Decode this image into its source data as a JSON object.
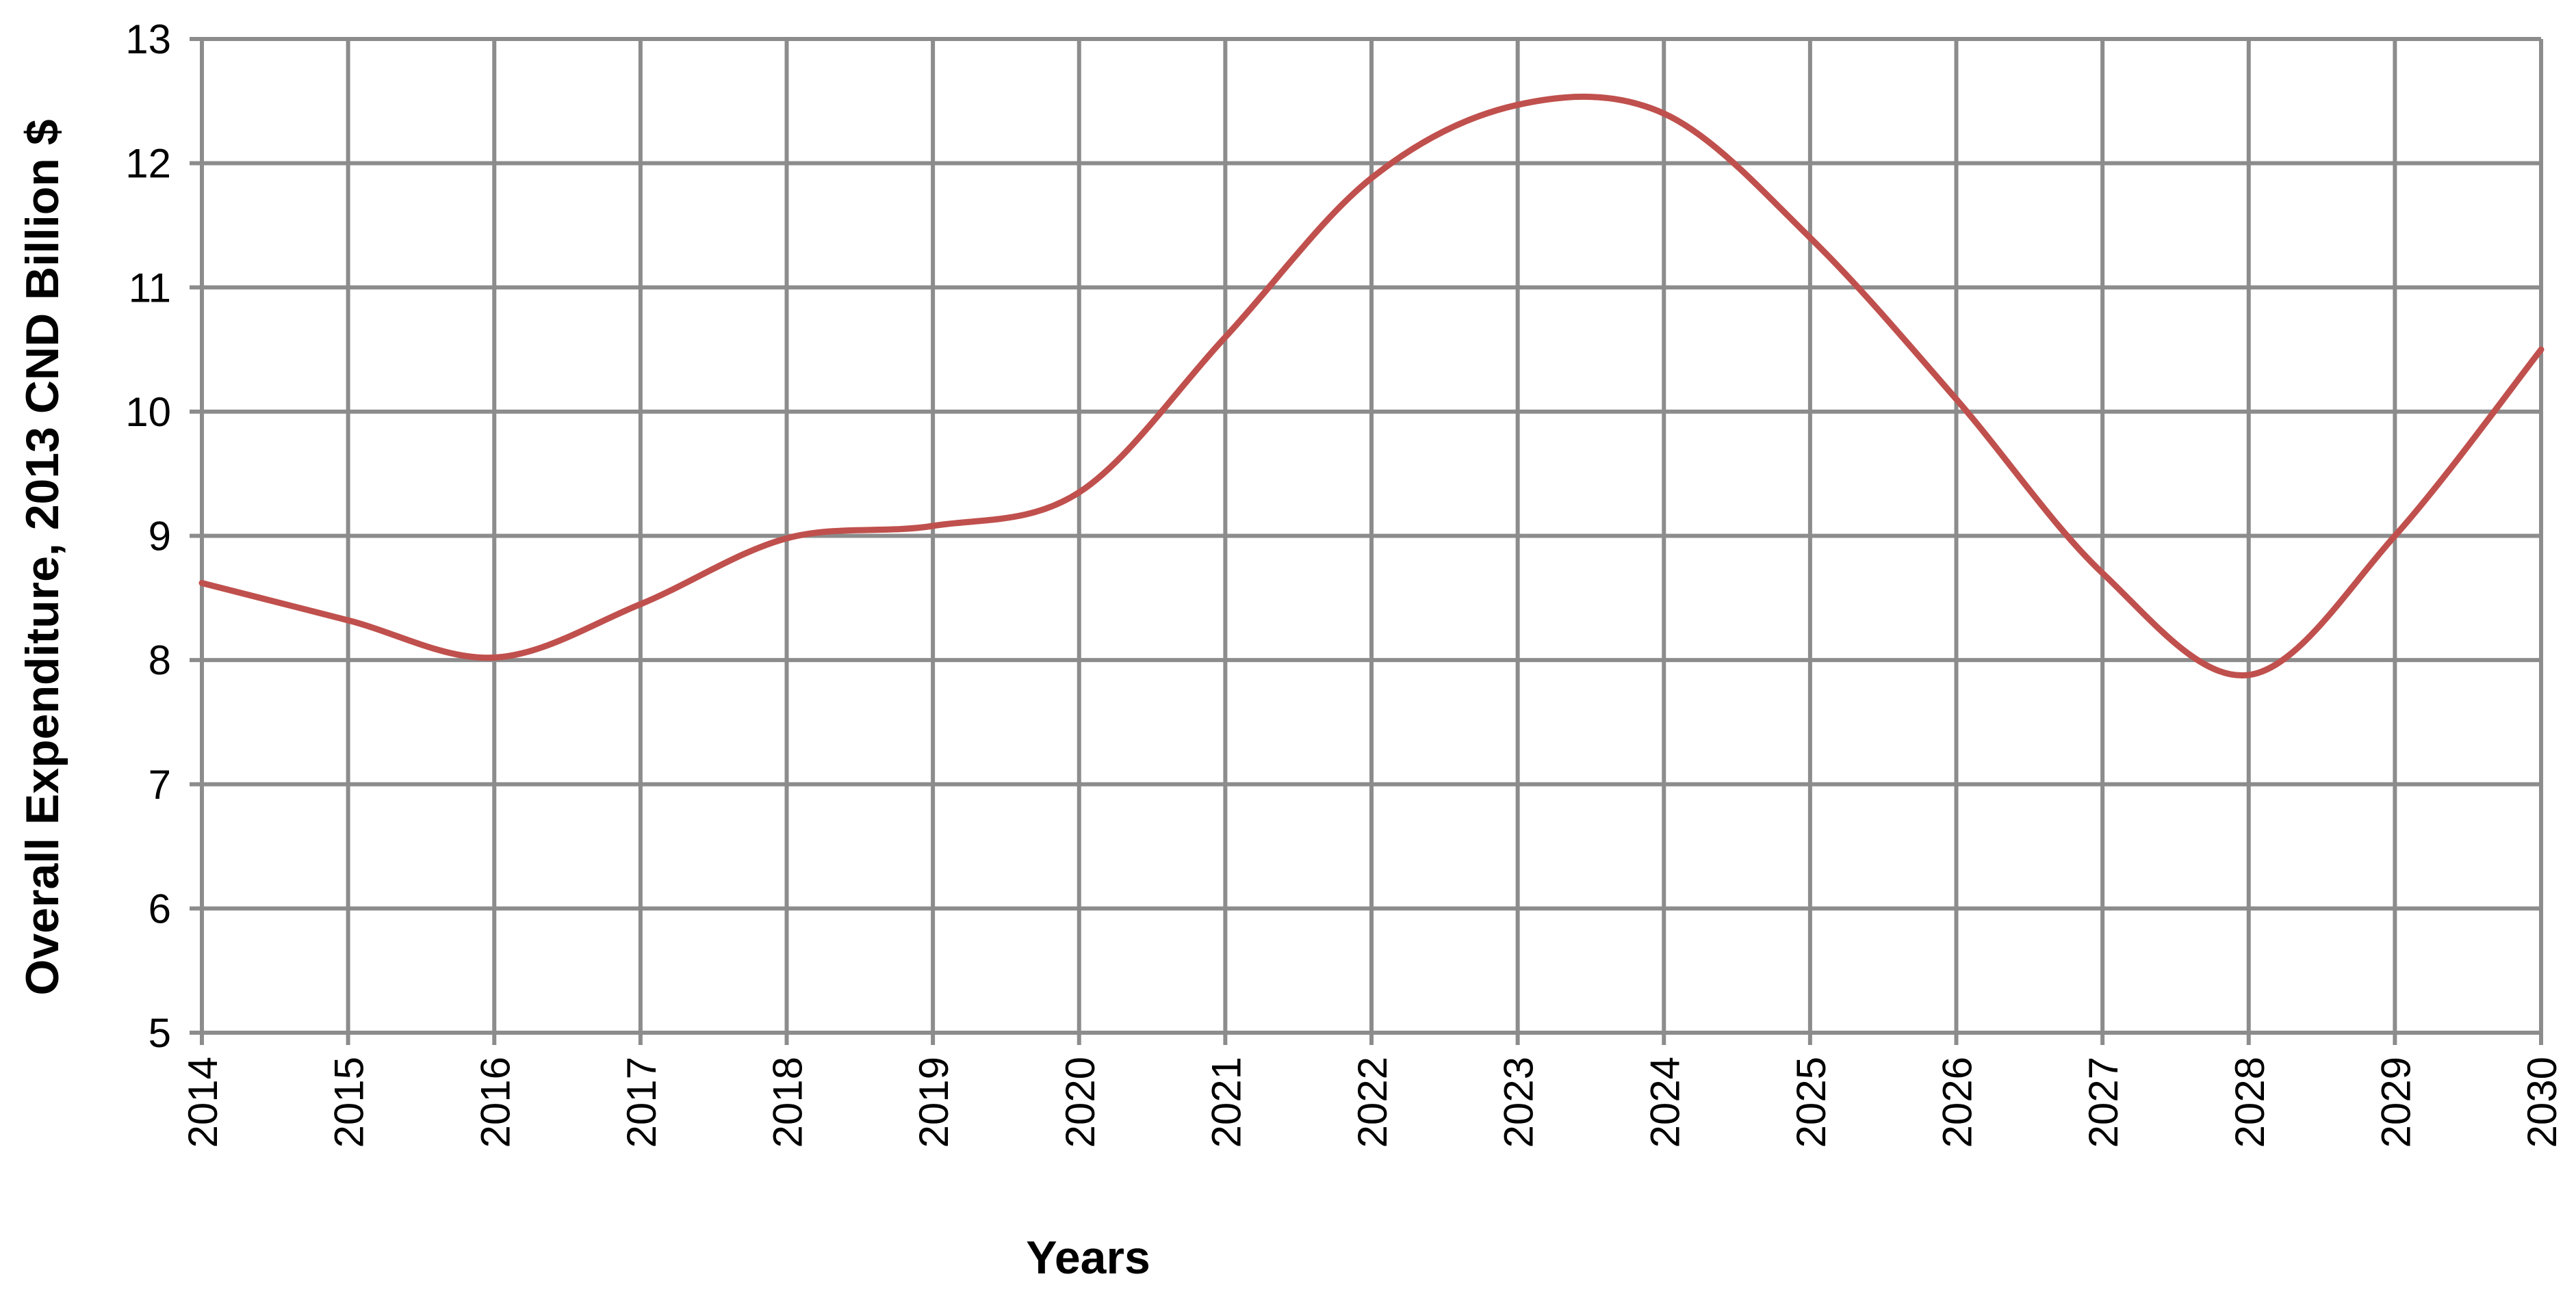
{
  "chart_data": {
    "type": "line",
    "title": "",
    "xlabel": "Years",
    "ylabel": "Overall Expenditure, 2013 CND Billion $",
    "x": [
      2014,
      2015,
      2016,
      2017,
      2018,
      2019,
      2020,
      2021,
      2022,
      2023,
      2024,
      2025,
      2026,
      2027,
      2028,
      2029,
      2030
    ],
    "y_ticks": [
      5,
      6,
      7,
      8,
      9,
      10,
      11,
      12,
      13
    ],
    "xlim": [
      2014,
      2030
    ],
    "ylim": [
      5,
      13
    ],
    "grid": true,
    "legend": "none",
    "series": [
      {
        "color": "#c0504d",
        "smooth": true,
        "values": [
          8.62,
          8.32,
          8.02,
          8.45,
          8.98,
          9.08,
          9.35,
          10.6,
          11.88,
          12.47,
          12.4,
          11.4,
          10.1,
          8.7,
          7.88,
          9.0,
          10.5
        ]
      }
    ],
    "colors": {
      "grid": "#8c8c8c",
      "axis": "#8c8c8c",
      "line": "#c0504d",
      "text": "#000000"
    }
  }
}
